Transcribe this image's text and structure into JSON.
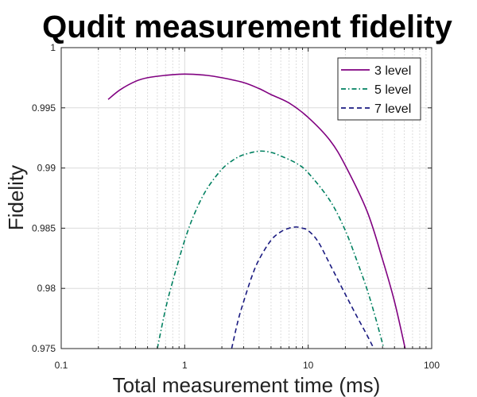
{
  "chart_data": {
    "type": "line",
    "title": "Qudit measurement fidelity",
    "xlabel": "Total measurement time (ms)",
    "ylabel": "Fidelity",
    "xscale": "log",
    "xlim": [
      0.1,
      100
    ],
    "ylim": [
      0.975,
      1
    ],
    "xticks": [
      0.1,
      1,
      10,
      100
    ],
    "xtick_labels": [
      "0.1",
      "1",
      "10",
      "100"
    ],
    "yticks": [
      0.975,
      0.98,
      0.985,
      0.99,
      0.995,
      1
    ],
    "ytick_labels": [
      "0.975",
      "0.98",
      "0.985",
      "0.99",
      "0.995",
      "1"
    ],
    "grid": true,
    "legend_position": "top-right",
    "series": [
      {
        "name": "3 level",
        "color": "#800080",
        "style": "solid",
        "x": [
          0.24,
          0.3,
          0.4,
          0.5,
          0.7,
          1,
          1.5,
          2,
          3,
          4,
          5,
          7,
          10,
          15,
          20,
          30,
          40,
          50,
          61
        ],
        "y": [
          0.9957,
          0.9965,
          0.9972,
          0.9975,
          0.9977,
          0.9978,
          0.9977,
          0.9975,
          0.9971,
          0.9966,
          0.9961,
          0.9954,
          0.9942,
          0.9923,
          0.9902,
          0.9864,
          0.9824,
          0.9789,
          0.975
        ]
      },
      {
        "name": "5 level",
        "color": "#008060",
        "style": "dash-dot",
        "x": [
          0.6,
          0.7,
          0.8,
          1,
          1.2,
          1.5,
          2,
          2.5,
          3,
          4,
          5,
          6,
          8,
          10,
          15,
          20,
          25,
          30,
          35,
          41
        ],
        "y": [
          0.975,
          0.9783,
          0.9806,
          0.984,
          0.9862,
          0.9882,
          0.9899,
          0.9907,
          0.9911,
          0.9914,
          0.9913,
          0.991,
          0.9904,
          0.9896,
          0.9873,
          0.9848,
          0.9822,
          0.9799,
          0.9776,
          0.975
        ]
      },
      {
        "name": "7 level",
        "color": "#1a1a80",
        "style": "dashed",
        "x": [
          2.4,
          2.7,
          3,
          3.5,
          4,
          5,
          6,
          7,
          8,
          9,
          10,
          12,
          15,
          20,
          25,
          30,
          34
        ],
        "y": [
          0.975,
          0.9773,
          0.9789,
          0.981,
          0.9824,
          0.984,
          0.9847,
          0.985,
          0.9851,
          0.985,
          0.9848,
          0.9839,
          0.982,
          0.9795,
          0.9776,
          0.9761,
          0.975
        ]
      }
    ]
  }
}
